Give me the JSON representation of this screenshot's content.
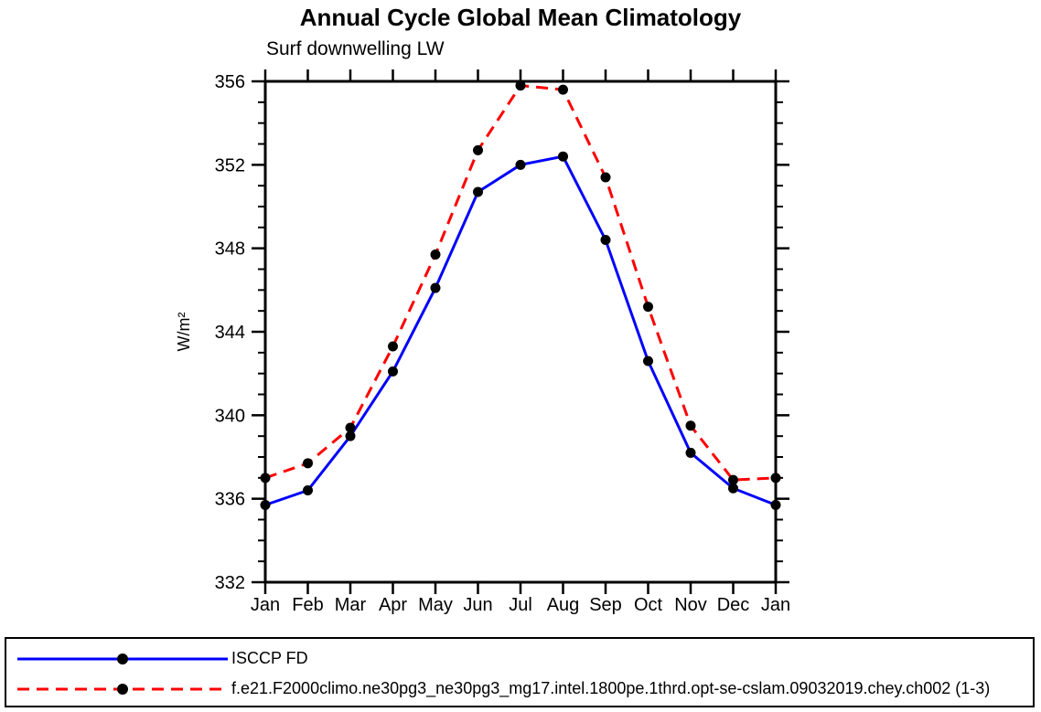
{
  "title": "Annual Cycle Global Mean Climatology",
  "subtitle": "Surf downwelling LW",
  "chart_data": {
    "type": "line",
    "x": [
      "Jan",
      "Feb",
      "Mar",
      "Apr",
      "May",
      "Jun",
      "Jul",
      "Aug",
      "Sep",
      "Oct",
      "Nov",
      "Dec",
      "Jan"
    ],
    "xlabel": "",
    "ylabel": "W/m²",
    "ylim": [
      332,
      356
    ],
    "yticks": [
      332,
      336,
      340,
      344,
      348,
      352,
      356
    ],
    "y_minor_step": 1,
    "grid": false,
    "legend_position": "bottom box, full width",
    "axis_color": "#000000",
    "marker_color": "#000000",
    "series": [
      {
        "name": "ISCCP FD",
        "color": "#0000ff",
        "line_style": "solid",
        "marker": "filled-circle",
        "values": [
          335.7,
          336.4,
          339.0,
          342.1,
          346.1,
          350.7,
          352.0,
          352.4,
          348.4,
          342.6,
          338.2,
          336.5,
          335.7
        ]
      },
      {
        "name": "f.e21.F2000climo.ne30pg3_ne30pg3_mg17.intel.1800pe.1thrd.opt-se-cslam.09032019.chey.ch002 (1-3)",
        "color": "#ff0000",
        "line_style": "dashed",
        "marker": "filled-circle",
        "values": [
          337.0,
          337.7,
          339.4,
          343.3,
          347.7,
          352.7,
          355.8,
          355.6,
          351.4,
          345.2,
          339.5,
          336.9,
          337.0
        ]
      }
    ]
  }
}
